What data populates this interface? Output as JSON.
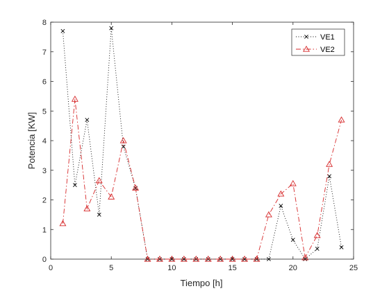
{
  "chart_data": {
    "type": "line",
    "title": "",
    "xlabel": "Tiempo [h]",
    "ylabel": "Potencia [KW]",
    "xlim": [
      0,
      25
    ],
    "ylim": [
      0,
      8
    ],
    "xticks": [
      0,
      5,
      10,
      15,
      20,
      25
    ],
    "yticks": [
      0,
      1,
      2,
      3,
      4,
      5,
      6,
      7,
      8
    ],
    "grid": false,
    "legend_position": "top-right",
    "x": [
      1,
      2,
      3,
      4,
      5,
      6,
      7,
      8,
      9,
      10,
      11,
      12,
      13,
      14,
      15,
      16,
      17,
      18,
      19,
      20,
      21,
      22,
      23,
      24
    ],
    "series": [
      {
        "name": "VE1",
        "color": "#000000",
        "line_style": "dotted",
        "marker": "x",
        "values": [
          7.7,
          2.5,
          4.7,
          1.5,
          7.8,
          3.8,
          2.4,
          0,
          0,
          0,
          0,
          0,
          0,
          0,
          0,
          0,
          0,
          0,
          1.8,
          0.65,
          0,
          0.35,
          2.8,
          0.4
        ]
      },
      {
        "name": "VE2",
        "color": "#d62728",
        "line_style": "dash-dot",
        "marker": "triangle",
        "values": [
          1.2,
          5.4,
          1.7,
          2.65,
          2.1,
          4.0,
          2.4,
          0,
          0,
          0,
          0,
          0,
          0,
          0,
          0,
          0,
          0,
          1.5,
          2.2,
          2.55,
          0.05,
          0.8,
          3.2,
          4.7
        ]
      }
    ]
  }
}
